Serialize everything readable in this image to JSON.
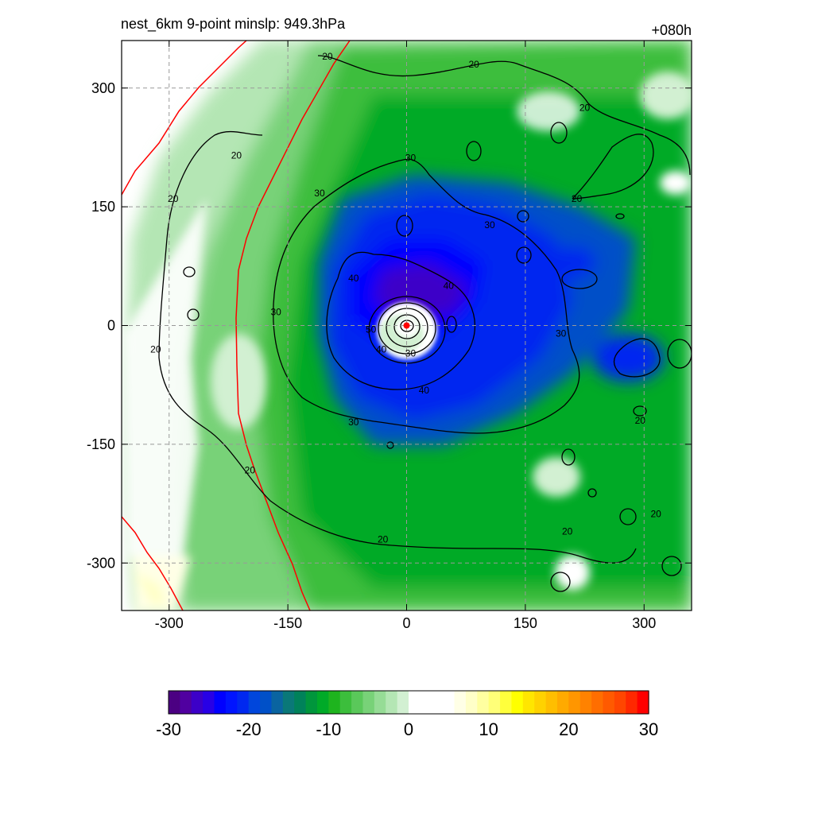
{
  "title_left": "nest_6km  9-point minslp: 949.3hPa",
  "title_right": "+080h",
  "chart_data": {
    "type": "contour",
    "x_ticks": [
      -300,
      -150,
      0,
      150,
      300
    ],
    "y_ticks": [
      300,
      150,
      0,
      -150,
      -300
    ],
    "xlim": [
      -360,
      360
    ],
    "ylim": [
      -360,
      360
    ],
    "grid": true,
    "contour_levels": [
      20,
      30,
      40,
      50
    ],
    "contour_labels": [
      {
        "text": "20",
        "x": -100,
        "y": 340
      },
      {
        "text": "20",
        "x": 85,
        "y": 330
      },
      {
        "text": "20",
        "x": 225,
        "y": 275
      },
      {
        "text": "20",
        "x": -215,
        "y": 215
      },
      {
        "text": "20",
        "x": -295,
        "y": 160
      },
      {
        "text": "20",
        "x": 215,
        "y": 160
      },
      {
        "text": "20",
        "x": -317,
        "y": -30
      },
      {
        "text": "20",
        "x": -198,
        "y": -183
      },
      {
        "text": "20",
        "x": -30,
        "y": -270
      },
      {
        "text": "20",
        "x": 203,
        "y": -260
      },
      {
        "text": "20",
        "x": 315,
        "y": -238
      },
      {
        "text": "20",
        "x": 295,
        "y": -120
      },
      {
        "text": "30",
        "x": 5,
        "y": 212
      },
      {
        "text": "30",
        "x": -110,
        "y": 167
      },
      {
        "text": "30",
        "x": 105,
        "y": 127
      },
      {
        "text": "30",
        "x": -165,
        "y": 17
      },
      {
        "text": "30",
        "x": 195,
        "y": -10
      },
      {
        "text": "30",
        "x": -67,
        "y": -122
      },
      {
        "text": "30",
        "x": 5,
        "y": -35
      },
      {
        "text": "40",
        "x": -67,
        "y": 60
      },
      {
        "text": "40",
        "x": 53,
        "y": 50
      },
      {
        "text": "40",
        "x": 22,
        "y": -82
      },
      {
        "text": "40",
        "x": -32,
        "y": -30
      },
      {
        "text": "50",
        "x": -45,
        "y": -5
      }
    ],
    "center_marker": {
      "x": 0,
      "y": 0,
      "color": "#ff0000"
    },
    "colorbar": {
      "ticks": [
        "-30",
        "-20",
        "-10",
        "0",
        "10",
        "20",
        "30"
      ],
      "min": -30,
      "max": 30,
      "colors": [
        "#4b0082",
        "#5000a0",
        "#3c00c8",
        "#2800e6",
        "#0000ff",
        "#0014ff",
        "#0028f0",
        "#0046dc",
        "#0050c8",
        "#0a64a0",
        "#0a7878",
        "#00825a",
        "#00963c",
        "#00aa28",
        "#1eb41e",
        "#3cbe3c",
        "#5ac85a",
        "#78d278",
        "#96dc96",
        "#b4e6b4",
        "#d2f0d2",
        "#ffffff",
        "#ffffff",
        "#ffffff",
        "#ffffff",
        "#ffffe6",
        "#ffffc8",
        "#ffffa0",
        "#ffff78",
        "#ffff3c",
        "#ffff00",
        "#ffe600",
        "#ffd200",
        "#ffbe00",
        "#ffaa00",
        "#ff9600",
        "#ff8200",
        "#ff6e00",
        "#ff5a00",
        "#ff4600",
        "#ff2800",
        "#ff0000"
      ]
    },
    "colors": {
      "contour": "#000000",
      "boundary": "#ff0000",
      "grid": "#999999"
    }
  }
}
